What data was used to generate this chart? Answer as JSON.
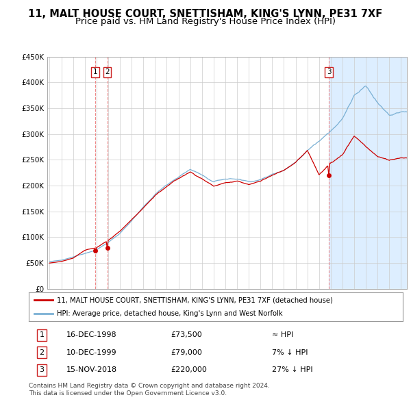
{
  "title": "11, MALT HOUSE COURT, SNETTISHAM, KING'S LYNN, PE31 7XF",
  "subtitle": "Price paid vs. HM Land Registry's House Price Index (HPI)",
  "title_fontsize": 10.5,
  "subtitle_fontsize": 9.5,
  "ylim": [
    0,
    450000
  ],
  "yticks": [
    0,
    50000,
    100000,
    150000,
    200000,
    250000,
    300000,
    350000,
    400000,
    450000
  ],
  "ytick_labels": [
    "£0",
    "£50K",
    "£100K",
    "£150K",
    "£200K",
    "£250K",
    "£300K",
    "£350K",
    "£400K",
    "£450K"
  ],
  "xlim_start": 1994.8,
  "xlim_end": 2025.5,
  "sale_dates": [
    "16-DEC-1998",
    "10-DEC-1999",
    "15-NOV-2018"
  ],
  "sale_prices": [
    73500,
    79000,
    220000
  ],
  "sale_labels": [
    "1",
    "2",
    "3"
  ],
  "sale_hpi_relation": [
    "≈ HPI",
    "7% ↓ HPI",
    "27% ↓ HPI"
  ],
  "red_line_color": "#cc0000",
  "blue_line_color": "#7ab0d4",
  "marker_color": "#cc0000",
  "vline_color": "#ee8888",
  "grid_color": "#cccccc",
  "background_color": "#ffffff",
  "shade_color": "#ddeeff",
  "legend_label_red": "11, MALT HOUSE COURT, SNETTISHAM, KING'S LYNN, PE31 7XF (detached house)",
  "legend_label_blue": "HPI: Average price, detached house, King's Lynn and West Norfolk",
  "footnote": "Contains HM Land Registry data © Crown copyright and database right 2024.\nThis data is licensed under the Open Government Licence v3.0.",
  "hpi_annual": {
    "years": [
      1995,
      1996,
      1997,
      1998,
      1999,
      2000,
      2001,
      2002,
      2003,
      2004,
      2005,
      2006,
      2007,
      2008,
      2009,
      2010,
      2011,
      2012,
      2013,
      2014,
      2015,
      2016,
      2017,
      2018,
      2019,
      2020,
      2021,
      2022,
      2023,
      2024,
      2025
    ],
    "values": [
      53000,
      55000,
      61000,
      68000,
      76000,
      90000,
      108000,
      133000,
      158000,
      182000,
      202000,
      218000,
      232000,
      222000,
      207000,
      213000,
      213000,
      208000,
      212000,
      222000,
      232000,
      248000,
      272000,
      292000,
      315000,
      338000,
      385000,
      400000,
      368000,
      342000,
      348000
    ]
  },
  "price_annual": {
    "years": [
      1995,
      1996,
      1997,
      1998,
      1999,
      2000,
      2001,
      2002,
      2003,
      2004,
      2005,
      2006,
      2007,
      2008,
      2009,
      2010,
      2011,
      2012,
      2013,
      2014,
      2015,
      2016,
      2017,
      2018,
      2019,
      2020,
      2021,
      2022,
      2023,
      2024,
      2025
    ],
    "values": [
      50000,
      53000,
      59000,
      73500,
      79000,
      93000,
      110000,
      133000,
      156000,
      180000,
      198000,
      212000,
      225000,
      212000,
      198000,
      205000,
      206000,
      200000,
      207000,
      218000,
      228000,
      244000,
      265000,
      220000,
      242000,
      258000,
      295000,
      275000,
      255000,
      248000,
      252000
    ]
  }
}
